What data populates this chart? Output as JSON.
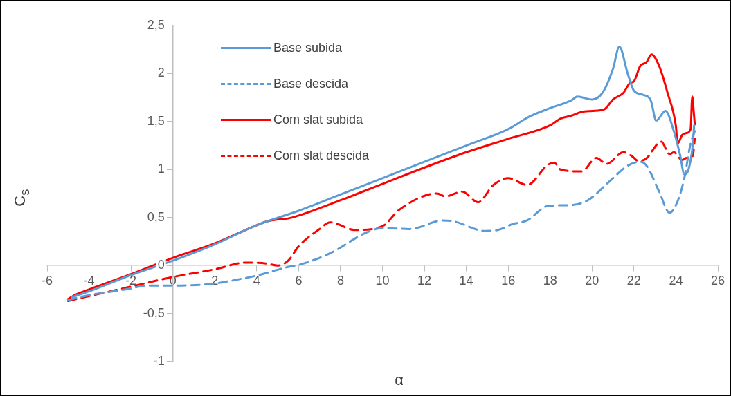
{
  "chart_data": {
    "type": "line",
    "xlabel": "α",
    "ylabel": "C$_{s}$",
    "xlim": [
      -6,
      26
    ],
    "xticks": [
      -6,
      -4,
      -2,
      0,
      2,
      4,
      6,
      8,
      10,
      12,
      14,
      16,
      18,
      20,
      22,
      24,
      26
    ],
    "ylim": [
      -1,
      2.5
    ],
    "yticks": [
      {
        "value": -1,
        "label": "-1"
      },
      {
        "value": -0.5,
        "label": "-0,5"
      },
      {
        "value": 0,
        "label": "0"
      },
      {
        "value": 0.5,
        "label": "0,5"
      },
      {
        "value": 1,
        "label": "1"
      },
      {
        "value": 1.5,
        "label": "1,5"
      },
      {
        "value": 2,
        "label": "2"
      },
      {
        "value": 2.5,
        "label": "2,5"
      }
    ],
    "grid": false,
    "legend": "top left",
    "marker": "none",
    "series": [
      {
        "name": "Base subida",
        "color": "#5b9bd5",
        "line_style": "solid",
        "x": [
          -4.8,
          -4,
          -2,
          0,
          2,
          4,
          6,
          8,
          10,
          12,
          14,
          16,
          17,
          18,
          19,
          19.3,
          20,
          20.5,
          21,
          21.3,
          21.7,
          22,
          22.4,
          22.8,
          23.06,
          23.5,
          23.9,
          24.2,
          24.4,
          24.6,
          24.8,
          24.87
        ],
        "values": [
          -0.33,
          -0.27,
          -0.1,
          0.05,
          0.22,
          0.42,
          0.57,
          0.74,
          0.91,
          1.08,
          1.25,
          1.42,
          1.55,
          1.64,
          1.72,
          1.76,
          1.73,
          1.8,
          2.05,
          2.28,
          2.0,
          1.82,
          1.78,
          1.72,
          1.51,
          1.61,
          1.4,
          1.15,
          0.95,
          1.0,
          1.25,
          1.46
        ]
      },
      {
        "name": "Base descida",
        "color": "#5b9bd5",
        "line_style": "dashed",
        "x": [
          -5,
          -4,
          -2,
          -1.3,
          0,
          1.9,
          3,
          4.1,
          5.4,
          6.07,
          7,
          7.7,
          9.2,
          10,
          11.3,
          12.9,
          13.4,
          14.9,
          15.5,
          16.2,
          16.9,
          17.9,
          19,
          19.8,
          20.8,
          21.7,
          22.3,
          22.6,
          23.2,
          23.7,
          24.1,
          24.4,
          24.7,
          24.9
        ],
        "values": [
          -0.36,
          -0.31,
          -0.24,
          -0.21,
          -0.21,
          -0.19,
          -0.15,
          -0.1,
          -0.02,
          0.01,
          0.08,
          0.15,
          0.34,
          0.39,
          0.38,
          0.47,
          0.46,
          0.36,
          0.37,
          0.43,
          0.47,
          0.62,
          0.63,
          0.68,
          0.87,
          1.04,
          1.08,
          1.04,
          0.77,
          0.55,
          0.68,
          0.91,
          1.27,
          1.4
        ]
      },
      {
        "name": "Com slat subida",
        "color": "#ff0000",
        "line_style": "solid",
        "x": [
          -5,
          -4.6,
          -4,
          -2,
          0,
          2,
          4,
          4.5,
          5,
          5.5,
          6,
          8,
          10,
          12,
          14,
          16,
          18,
          18.5,
          19,
          19.5,
          20,
          20.6,
          21,
          21.5,
          21.8,
          22,
          22.3,
          22.6,
          22.83,
          23.2,
          23.6,
          24,
          24.08,
          24.3,
          24.5,
          24.7,
          24.78,
          24.85,
          24.9
        ],
        "values": [
          -0.35,
          -0.3,
          -0.25,
          -0.09,
          0.08,
          0.23,
          0.42,
          0.46,
          0.48,
          0.49,
          0.52,
          0.68,
          0.85,
          1.02,
          1.18,
          1.32,
          1.46,
          1.53,
          1.56,
          1.6,
          1.61,
          1.63,
          1.73,
          1.8,
          1.9,
          1.92,
          2.08,
          2.12,
          2.2,
          2.08,
          1.8,
          1.45,
          1.27,
          1.36,
          1.38,
          1.42,
          1.76,
          1.6,
          1.47
        ]
      },
      {
        "name": "Com slat descida",
        "color": "#ff0000",
        "line_style": "dashed",
        "x": [
          -5,
          -4,
          -2,
          0,
          2,
          3.5,
          4.5,
          5,
          5.5,
          6,
          7,
          7.5,
          8.7,
          10,
          10.8,
          12.6,
          13,
          13.8,
          14.56,
          15.3,
          16,
          16.9,
          17.9,
          18.2,
          18.5,
          19.5,
          20.2,
          20.7,
          21.5,
          21.9,
          22.2,
          22.56,
          23.3,
          23.7,
          23.9,
          24.3,
          24.6,
          24.8,
          24.9
        ],
        "values": [
          -0.37,
          -0.32,
          -0.22,
          -0.12,
          -0.04,
          0.03,
          0.02,
          0,
          0.05,
          0.2,
          0.38,
          0.45,
          0.37,
          0.41,
          0.58,
          0.75,
          0.72,
          0.77,
          0.66,
          0.84,
          0.91,
          0.84,
          1.05,
          1.07,
          1.0,
          0.98,
          1.12,
          1.06,
          1.18,
          1.14,
          1.09,
          1.11,
          1.29,
          1.16,
          1.18,
          1.1,
          1.13,
          1.14,
          1.32
        ]
      }
    ]
  }
}
